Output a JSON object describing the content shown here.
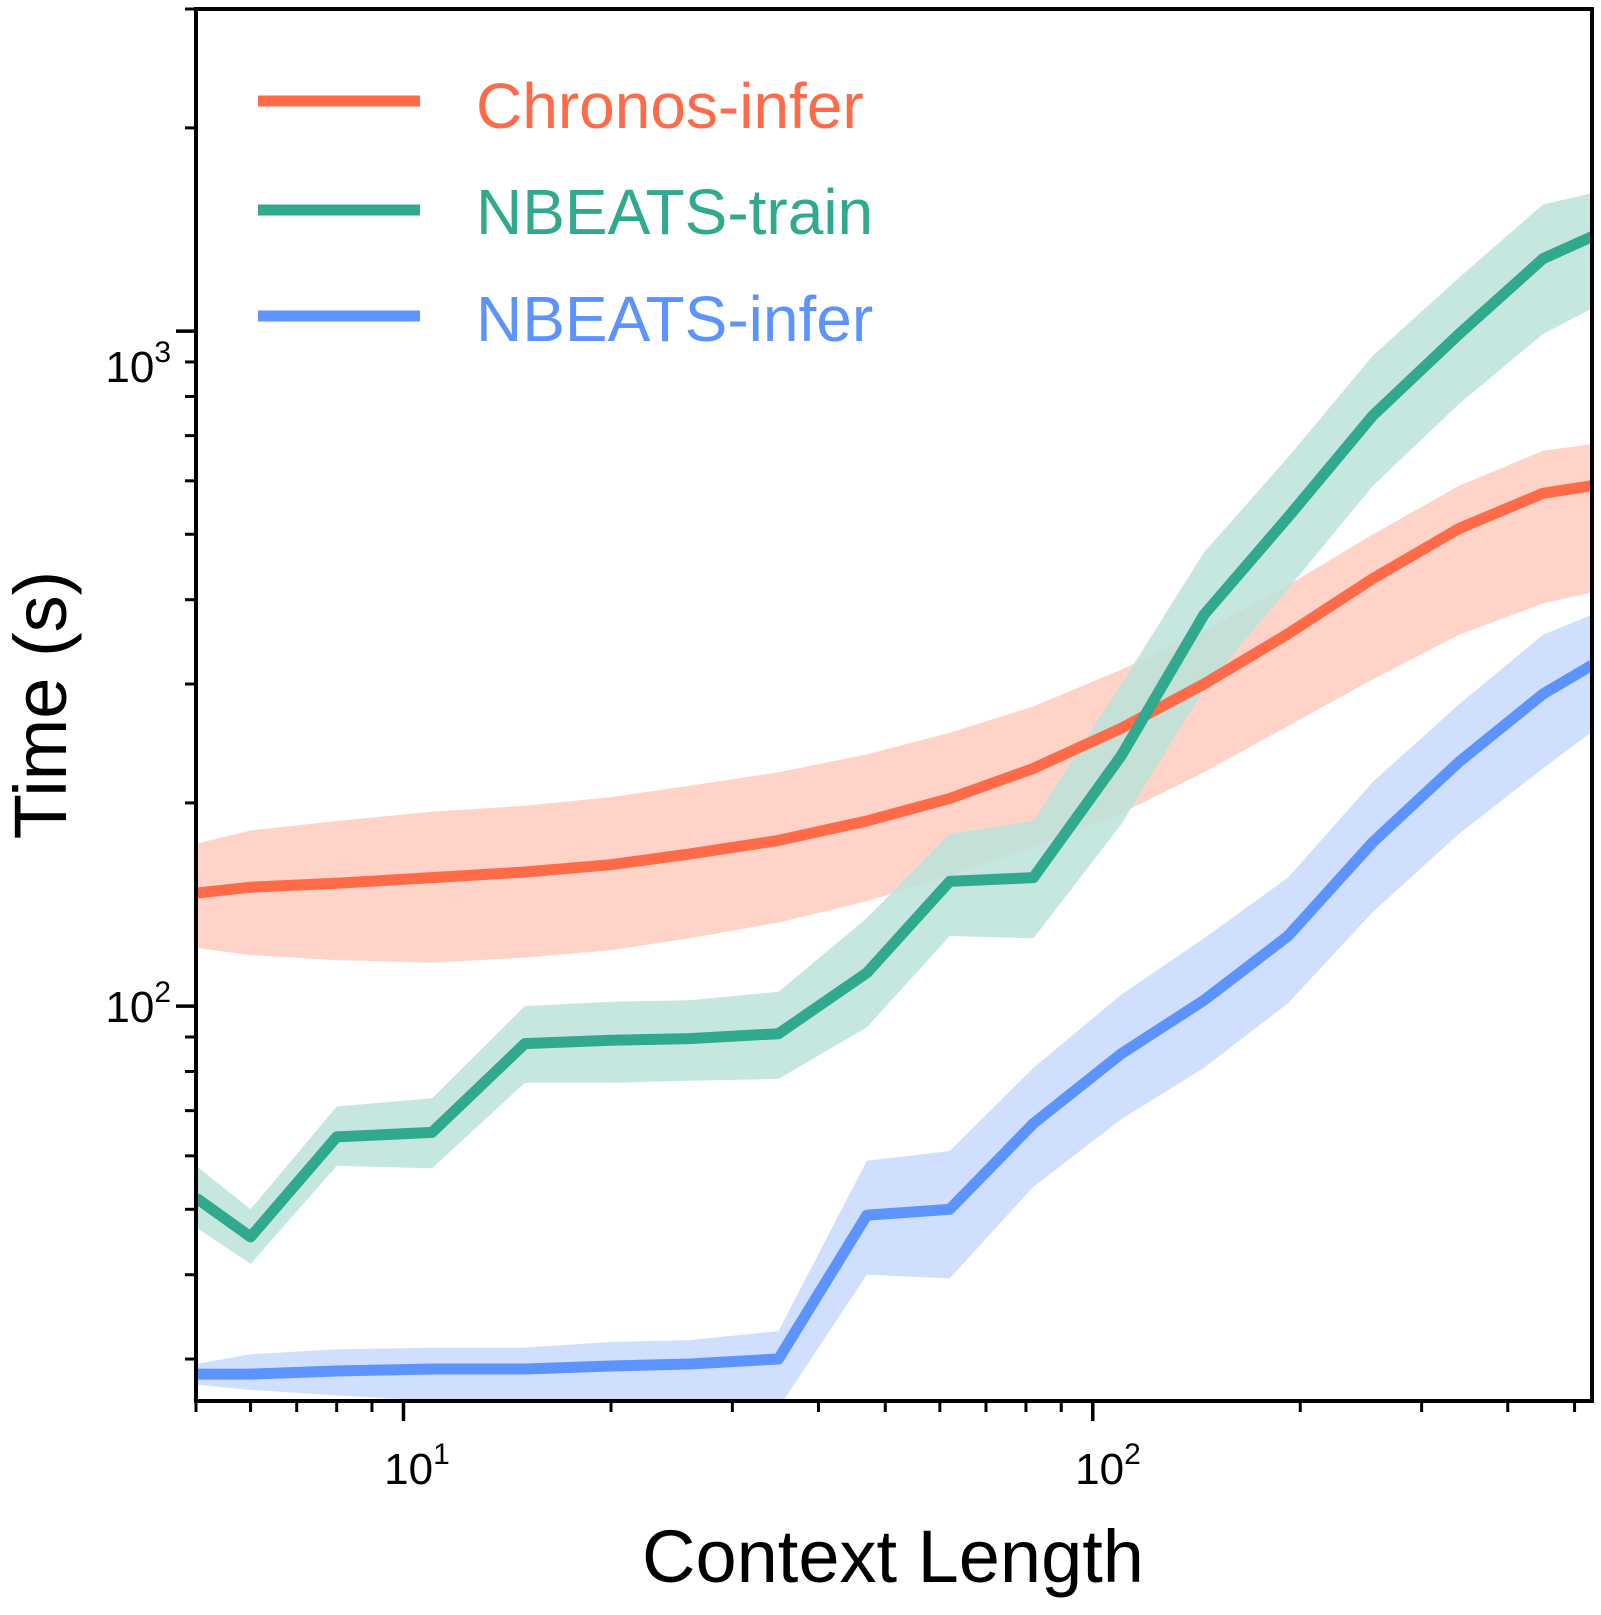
{
  "chart_data": {
    "type": "line",
    "xlabel": "Context Length",
    "ylabel": "Time (s)",
    "xscale": "log",
    "yscale": "log",
    "xlim": [
      5,
      530
    ],
    "ylim": [
      26,
      3000
    ],
    "x_ticks": [
      {
        "base": "10",
        "exp": "1",
        "value": 10
      },
      {
        "base": "10",
        "exp": "2",
        "value": 100
      }
    ],
    "y_ticks": [
      {
        "base": "10",
        "exp": "2",
        "value": 100
      },
      {
        "base": "10",
        "exp": "3",
        "value": 1000
      }
    ],
    "legend_position": "top-left",
    "x": [
      5,
      6,
      8,
      11,
      15,
      20,
      26,
      35,
      47,
      62,
      82,
      110,
      145,
      192,
      255,
      340,
      450,
      530
    ],
    "series": [
      {
        "name": "Chronos-infer",
        "color": "#ff6a48",
        "band_color": "#ffcbbd",
        "values": [
          147,
          150,
          152,
          155,
          158,
          162,
          168,
          176,
          188,
          203,
          225,
          258,
          300,
          356,
          430,
          510,
          575,
          590
        ],
        "lower": [
          122,
          119,
          117,
          116,
          118,
          121,
          126,
          133,
          143,
          156,
          172,
          193,
          222,
          260,
          305,
          355,
          395,
          410
        ],
        "upper": [
          174,
          182,
          188,
          194,
          198,
          204,
          212,
          222,
          236,
          254,
          278,
          315,
          360,
          420,
          500,
          590,
          665,
          680
        ]
      },
      {
        "name": "NBEATS-train",
        "color": "#30a98f",
        "band_color": "#bbe3d9",
        "values": [
          52,
          45.5,
          64,
          65,
          88,
          89,
          89.5,
          91,
          112,
          153,
          155,
          235,
          380,
          530,
          750,
          990,
          1280,
          1380
        ],
        "lower": [
          47,
          41.5,
          58,
          57.5,
          77,
          77,
          77.5,
          78,
          93,
          127,
          126,
          186,
          295,
          415,
          590,
          780,
          990,
          1080
        ],
        "upper": [
          58,
          50,
          71,
          73,
          100,
          101.5,
          102,
          105,
          135,
          180,
          188,
          300,
          470,
          650,
          920,
          1200,
          1540,
          1600
        ]
      },
      {
        "name": "NBEATS-infer",
        "color": "#5c93ff",
        "band_color": "#c9d9ff",
        "values": [
          28.5,
          28.5,
          28.8,
          29,
          29,
          29.3,
          29.5,
          30,
          49,
          50,
          67,
          85,
          102,
          127,
          175,
          230,
          290,
          320
        ],
        "lower": [
          27.5,
          27,
          26.5,
          26,
          25.8,
          25.6,
          25.5,
          25.4,
          40,
          39.5,
          54,
          68,
          81,
          101,
          138,
          180,
          225,
          255
        ],
        "upper": [
          29.5,
          30.5,
          31,
          31.2,
          31.2,
          31.8,
          32,
          33,
          59,
          61,
          81,
          104,
          126,
          155,
          215,
          280,
          355,
          380
        ]
      }
    ]
  }
}
